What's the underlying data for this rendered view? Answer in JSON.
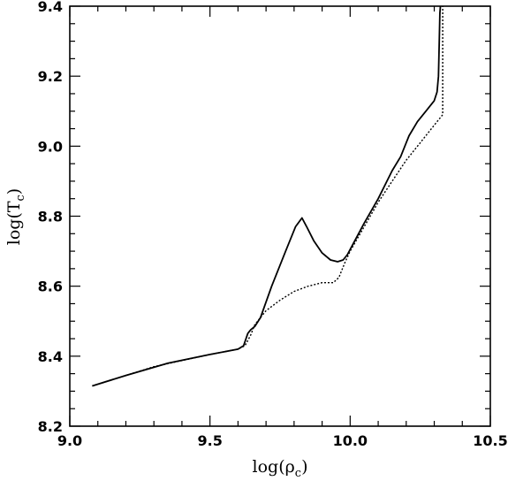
{
  "chart_data": {
    "type": "line",
    "title": "",
    "xlabel": "log(ρ",
    "xlabel_sub": "c",
    "xlabel_close": ")",
    "ylabel": "log(T",
    "ylabel_sub": "c",
    "ylabel_close": ")",
    "xlim": [
      9.0,
      10.5
    ],
    "ylim": [
      8.2,
      9.4
    ],
    "xticks": [
      "9.0",
      "9.5",
      "10.0",
      "10.5"
    ],
    "yticks": [
      "8.2",
      "8.4",
      "8.6",
      "8.8",
      "9.0",
      "9.2",
      "9.4"
    ],
    "grid": false,
    "legend": "none",
    "series": [
      {
        "style": "solid",
        "x": [
          9.08,
          9.2,
          9.35,
          9.5,
          9.6,
          9.62,
          9.635,
          9.645,
          9.66,
          9.68,
          9.72,
          9.77,
          9.805,
          9.828,
          9.845,
          9.87,
          9.9,
          9.93,
          9.955,
          9.975,
          9.99,
          10.01,
          10.05,
          10.1,
          10.15,
          10.18,
          10.2,
          10.21,
          10.24,
          10.27,
          10.3,
          10.31,
          10.315,
          10.318,
          10.32,
          10.322
        ],
        "y": [
          8.315,
          8.345,
          8.38,
          8.405,
          8.42,
          8.43,
          8.465,
          8.475,
          8.485,
          8.51,
          8.6,
          8.7,
          8.77,
          8.795,
          8.77,
          8.73,
          8.695,
          8.675,
          8.67,
          8.675,
          8.69,
          8.72,
          8.78,
          8.85,
          8.93,
          8.97,
          9.01,
          9.03,
          9.07,
          9.1,
          9.13,
          9.155,
          9.2,
          9.3,
          9.38,
          9.4
        ]
      },
      {
        "style": "dotted",
        "x": [
          9.08,
          9.3,
          9.5,
          9.6,
          9.625,
          9.645,
          9.66,
          9.7,
          9.75,
          9.8,
          9.85,
          9.9,
          9.94,
          9.96,
          9.98,
          10.0,
          10.05,
          10.1,
          10.15,
          10.2,
          10.25,
          10.3,
          10.33,
          10.33,
          10.33
        ],
        "y": [
          8.315,
          8.37,
          8.405,
          8.42,
          8.43,
          8.46,
          8.49,
          8.53,
          8.56,
          8.585,
          8.6,
          8.61,
          8.61,
          8.625,
          8.665,
          8.7,
          8.77,
          8.84,
          8.9,
          8.96,
          9.01,
          9.06,
          9.09,
          9.25,
          9.4
        ]
      }
    ]
  }
}
